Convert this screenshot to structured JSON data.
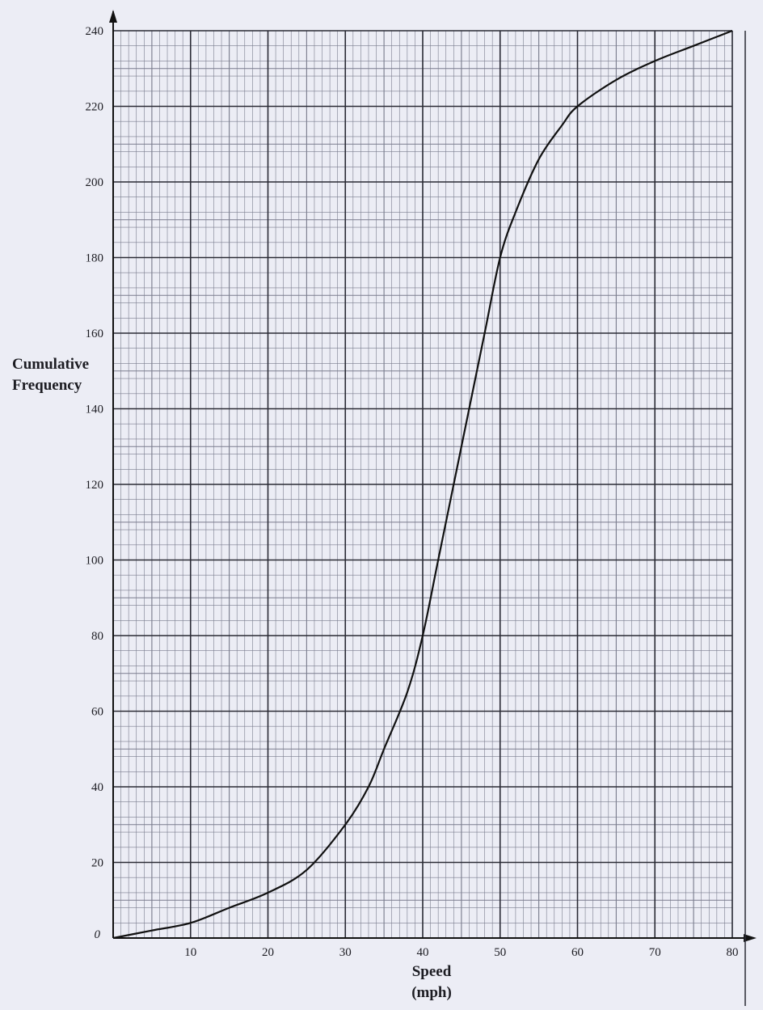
{
  "colors": {
    "paper": "#ecedf5",
    "grid_minor": "#7a7d8e",
    "grid_major": "#2a2b35",
    "curve": "#111111",
    "text": "#1c1c22"
  },
  "chart_data": {
    "type": "line",
    "title": "",
    "xlabel_line1": "Speed",
    "xlabel_line2": "(mph)",
    "ylabel_line1": "Cumulative",
    "ylabel_line2": "Frequency",
    "xlim": [
      0,
      80
    ],
    "ylim": [
      0,
      240
    ],
    "x_ticks": [
      10,
      20,
      30,
      40,
      50,
      60,
      70,
      80
    ],
    "x_tick_labels": [
      "10",
      "20",
      "30",
      "40",
      "50",
      "60",
      "70",
      "80"
    ],
    "y_ticks": [
      0,
      20,
      40,
      60,
      80,
      100,
      120,
      140,
      160,
      180,
      200,
      220,
      240
    ],
    "y_tick_labels": [
      "0",
      "20",
      "40",
      "60",
      "80",
      "100",
      "120",
      "140",
      "160",
      "180",
      "200",
      "220",
      "240"
    ],
    "grid": true,
    "grid_minor_step_x": 1,
    "grid_minor_step_y": 4,
    "grid_major_step_x": 10,
    "grid_major_step_y": 20,
    "legend": "none",
    "series": [
      {
        "x": [
          0,
          5,
          10,
          15,
          20,
          25,
          30,
          33,
          35,
          38,
          40,
          42,
          45,
          48,
          50,
          52,
          55,
          58,
          60,
          65,
          70,
          75,
          80
        ],
        "y": [
          0,
          2,
          4,
          8,
          12,
          18,
          30,
          40,
          50,
          65,
          80,
          100,
          130,
          160,
          180,
          192,
          206,
          215,
          220,
          227,
          232,
          236,
          240
        ]
      }
    ]
  }
}
